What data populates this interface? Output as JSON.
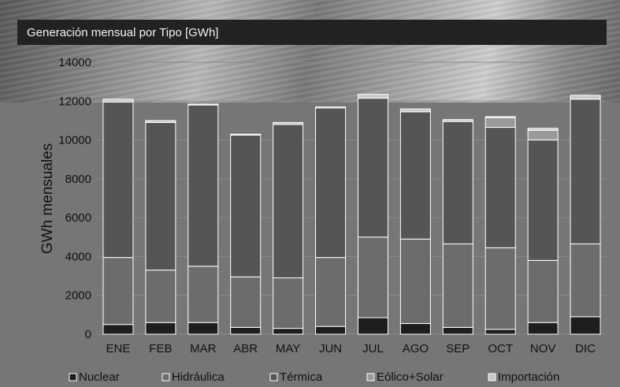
{
  "chart_data": {
    "type": "bar",
    "stacked": true,
    "title": "Generación mensual por Tipo [GWh]",
    "xlabel": "",
    "ylabel": "GWh mensuales",
    "ylim": [
      0,
      14000
    ],
    "yticks": [
      0,
      2000,
      4000,
      6000,
      8000,
      10000,
      12000,
      14000
    ],
    "grid": true,
    "legend_position": "bottom",
    "categories": [
      "ENE",
      "FEB",
      "MAR",
      "ABR",
      "MAY",
      "JUN",
      "JUL",
      "AGO",
      "SEP",
      "OCT",
      "NOV",
      "DIC"
    ],
    "series": [
      {
        "name": "Nuclear",
        "color": "#1e1e1e",
        "values": [
          500,
          600,
          600,
          350,
          300,
          400,
          850,
          550,
          350,
          250,
          600,
          900
        ]
      },
      {
        "name": "Hidráulica",
        "color": "#6c6c6c",
        "values": [
          3450,
          2700,
          2900,
          2600,
          2600,
          3550,
          4150,
          4350,
          4300,
          4200,
          3200,
          3750
        ]
      },
      {
        "name": "Térmica",
        "color": "#555555",
        "values": [
          8000,
          7600,
          8300,
          7300,
          7900,
          7700,
          7150,
          6550,
          6300,
          6200,
          6200,
          7450
        ]
      },
      {
        "name": "Eólico+Solar",
        "color": "#9a9a9a",
        "values": [
          0,
          0,
          0,
          0,
          0,
          0,
          0,
          0,
          0,
          500,
          500,
          0
        ]
      },
      {
        "name": "Importación",
        "color": "#c8c8c8",
        "values": [
          150,
          100,
          50,
          50,
          100,
          50,
          200,
          150,
          100,
          50,
          100,
          200
        ]
      }
    ]
  }
}
